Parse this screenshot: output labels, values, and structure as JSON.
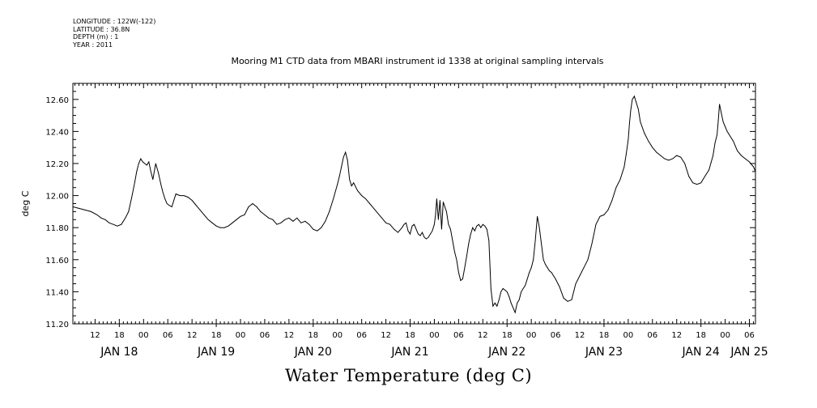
{
  "header": {
    "longitude": "LONGITUDE : 122W(-122)",
    "latitude": "LATITUDE : 36.8N",
    "depth": "DEPTH (m) : 1",
    "year": "YEAR : 2011"
  },
  "footer_title": "Water Temperature (deg C)",
  "chart_data": {
    "type": "line",
    "title": "Mooring M1 CTD data from MBARI instrument id 1338 at original sampling intervals",
    "xlabel": "",
    "ylabel": "deg C",
    "grid": false,
    "legend": "none",
    "line_color": "#000000",
    "x_unit": "hours since JAN 17 2011 00:00",
    "xlim": [
      6.5,
      175.5
    ],
    "ylim": [
      11.2,
      12.7
    ],
    "yticks": [
      11.2,
      11.4,
      11.6,
      11.8,
      12.0,
      12.2,
      12.4,
      12.6
    ],
    "ytick_labels": [
      "11.20",
      "11.40",
      "11.60",
      "11.80",
      "12.00",
      "12.20",
      "12.40",
      "12.60"
    ],
    "hour_ticks": [
      {
        "x": 12,
        "label": "12"
      },
      {
        "x": 18,
        "label": "18"
      },
      {
        "x": 24,
        "label": "00"
      },
      {
        "x": 30,
        "label": "06"
      },
      {
        "x": 36,
        "label": "12"
      },
      {
        "x": 42,
        "label": "18"
      },
      {
        "x": 48,
        "label": "00"
      },
      {
        "x": 54,
        "label": "06"
      },
      {
        "x": 60,
        "label": "12"
      },
      {
        "x": 66,
        "label": "18"
      },
      {
        "x": 72,
        "label": "00"
      },
      {
        "x": 78,
        "label": "06"
      },
      {
        "x": 84,
        "label": "12"
      },
      {
        "x": 90,
        "label": "18"
      },
      {
        "x": 96,
        "label": "00"
      },
      {
        "x": 102,
        "label": "06"
      },
      {
        "x": 108,
        "label": "12"
      },
      {
        "x": 114,
        "label": "18"
      },
      {
        "x": 120,
        "label": "00"
      },
      {
        "x": 126,
        "label": "06"
      },
      {
        "x": 132,
        "label": "12"
      },
      {
        "x": 138,
        "label": "18"
      },
      {
        "x": 144,
        "label": "00"
      },
      {
        "x": 150,
        "label": "06"
      },
      {
        "x": 156,
        "label": "12"
      },
      {
        "x": 162,
        "label": "18"
      },
      {
        "x": 168,
        "label": "00"
      },
      {
        "x": 174,
        "label": "06"
      }
    ],
    "day_labels": [
      {
        "x": 18,
        "label": "JAN 18"
      },
      {
        "x": 42,
        "label": "JAN 19"
      },
      {
        "x": 66,
        "label": "JAN 20"
      },
      {
        "x": 90,
        "label": "JAN 21"
      },
      {
        "x": 114,
        "label": "JAN 22"
      },
      {
        "x": 138,
        "label": "JAN 23"
      },
      {
        "x": 162,
        "label": "JAN 24"
      },
      {
        "x": 174,
        "label": "JAN 25"
      }
    ],
    "series": [
      {
        "x": [
          6.5,
          8,
          9.5,
          11,
          12.5,
          13.5,
          14.5,
          15.5,
          16.5,
          17.5,
          18.5,
          19.5,
          20.3,
          21,
          21.8,
          22.3,
          22.8,
          23.3,
          23.8,
          24.3,
          24.8,
          25.3,
          25.8,
          26.3,
          27,
          27.7,
          28.3,
          28.8,
          29.3,
          29.8,
          30.3,
          31,
          32,
          33,
          34,
          35,
          36,
          37,
          38,
          39,
          40,
          41,
          42,
          43,
          44,
          45,
          46,
          47,
          48,
          49,
          50,
          51,
          52,
          53,
          54,
          55,
          56,
          57,
          58,
          59,
          60,
          61,
          62,
          63,
          64,
          65,
          66,
          67,
          68,
          69,
          70,
          71,
          72,
          72.5,
          73,
          73.5,
          74,
          74.5,
          75,
          75.5,
          76,
          77,
          78,
          79,
          80,
          81,
          82,
          83,
          84,
          85,
          86,
          87,
          88,
          88.5,
          89,
          89.5,
          90,
          90.5,
          91,
          91.5,
          92,
          92.5,
          93,
          93.5,
          94,
          94.5,
          95,
          95.5,
          96,
          96.3,
          96.6,
          97,
          97.4,
          97.8,
          98.2,
          98.6,
          99,
          99.5,
          100,
          100.5,
          101,
          101.5,
          102,
          102.5,
          103,
          103.5,
          104,
          104.5,
          105,
          105.5,
          106,
          106.5,
          107,
          107.5,
          108,
          108.5,
          109,
          109.5,
          110,
          110.5,
          111,
          111.5,
          112,
          112.5,
          113,
          113.5,
          114,
          114.5,
          115,
          115.5,
          116,
          116.5,
          117,
          117.5,
          118,
          118.5,
          119,
          119.5,
          120,
          120.5,
          121,
          121.5,
          122,
          122.5,
          123,
          123.5,
          124,
          124.5,
          125,
          126,
          127,
          128,
          129,
          130,
          130.5,
          131,
          132,
          133,
          134,
          135,
          136,
          137,
          138,
          139,
          140,
          141,
          142,
          143,
          143.5,
          144,
          144.3,
          144.6,
          145,
          145.5,
          146,
          146.5,
          147,
          148,
          149,
          150,
          151,
          152,
          153,
          154,
          155,
          156,
          157,
          158,
          159,
          160,
          161,
          162,
          163,
          164,
          165,
          165.5,
          166,
          166.3,
          166.6,
          167,
          167.5,
          168,
          168.5,
          169,
          170,
          171,
          172,
          173,
          174,
          175,
          175.5
        ],
        "values": [
          11.93,
          11.92,
          11.91,
          11.9,
          11.88,
          11.86,
          11.85,
          11.83,
          11.82,
          11.81,
          11.82,
          11.86,
          11.9,
          11.98,
          12.08,
          12.15,
          12.2,
          12.23,
          12.21,
          12.2,
          12.19,
          12.21,
          12.15,
          12.1,
          12.2,
          12.14,
          12.07,
          12.02,
          11.98,
          11.95,
          11.94,
          11.93,
          12.01,
          12.0,
          12.0,
          11.99,
          11.97,
          11.94,
          11.91,
          11.88,
          11.85,
          11.83,
          11.81,
          11.8,
          11.8,
          11.81,
          11.83,
          11.85,
          11.87,
          11.88,
          11.93,
          11.95,
          11.93,
          11.9,
          11.88,
          11.86,
          11.85,
          11.82,
          11.83,
          11.85,
          11.86,
          11.84,
          11.86,
          11.83,
          11.84,
          11.82,
          11.79,
          11.78,
          11.8,
          11.84,
          11.9,
          11.98,
          12.07,
          12.12,
          12.18,
          12.24,
          12.27,
          12.22,
          12.1,
          12.06,
          12.08,
          12.03,
          12.0,
          11.98,
          11.95,
          11.92,
          11.89,
          11.86,
          11.83,
          11.82,
          11.79,
          11.77,
          11.8,
          11.82,
          11.83,
          11.78,
          11.76,
          11.81,
          11.82,
          11.79,
          11.76,
          11.75,
          11.77,
          11.74,
          11.73,
          11.74,
          11.76,
          11.78,
          11.82,
          11.88,
          11.98,
          11.85,
          11.97,
          11.79,
          11.96,
          11.93,
          11.9,
          11.82,
          11.79,
          11.72,
          11.65,
          11.6,
          11.52,
          11.47,
          11.48,
          11.55,
          11.62,
          11.7,
          11.76,
          11.8,
          11.78,
          11.81,
          11.82,
          11.8,
          11.82,
          11.81,
          11.79,
          11.72,
          11.42,
          11.31,
          11.33,
          11.31,
          11.35,
          11.4,
          11.42,
          11.41,
          11.4,
          11.37,
          11.33,
          11.3,
          11.27,
          11.33,
          11.35,
          11.4,
          11.42,
          11.44,
          11.48,
          11.52,
          11.55,
          11.6,
          11.72,
          11.87,
          11.8,
          11.7,
          11.6,
          11.57,
          11.55,
          11.53,
          11.52,
          11.48,
          11.43,
          11.36,
          11.34,
          11.35,
          11.4,
          11.45,
          11.5,
          11.55,
          11.6,
          11.7,
          11.82,
          11.87,
          11.88,
          11.91,
          11.97,
          12.05,
          12.1,
          12.18,
          12.26,
          12.35,
          12.45,
          12.53,
          12.6,
          12.62,
          12.58,
          12.54,
          12.46,
          12.39,
          12.34,
          12.3,
          12.27,
          12.25,
          12.23,
          12.22,
          12.23,
          12.25,
          12.24,
          12.2,
          12.12,
          12.08,
          12.07,
          12.08,
          12.12,
          12.16,
          12.25,
          12.33,
          12.38,
          12.47,
          12.57,
          12.52,
          12.46,
          12.43,
          12.4,
          12.38,
          12.34,
          12.28,
          12.25,
          12.23,
          12.21,
          12.18,
          12.15
        ]
      }
    ]
  }
}
